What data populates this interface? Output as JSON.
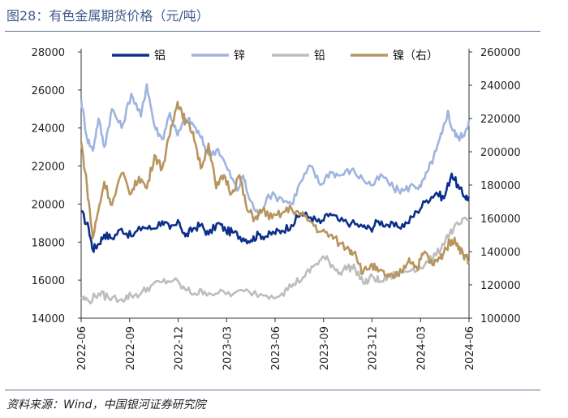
{
  "page": {
    "title": "图28：有色金属期货价格（元/吨）",
    "source": "资料来源：Wind，中国银河证券研究院"
  },
  "chart_data": {
    "type": "line",
    "title": "有色金属期货价格（元/吨）",
    "x_ticks": [
      "2022-06",
      "2022-09",
      "2022-12",
      "2023-03",
      "2023-06",
      "2023-09",
      "2023-12",
      "2024-03",
      "2024-06"
    ],
    "y_left": {
      "min": 14000,
      "max": 28000,
      "ticks": [
        "14000",
        "16000",
        "18000",
        "20000",
        "22000",
        "24000",
        "26000",
        "28000"
      ]
    },
    "y_right": {
      "min": 100000,
      "max": 260000,
      "ticks": [
        "100000",
        "120000",
        "140000",
        "160000",
        "180000",
        "200000",
        "220000",
        "240000",
        "260000"
      ]
    },
    "legend_position": "top",
    "series": [
      {
        "name": "铝",
        "axis": "left",
        "color": "#0b2f8a",
        "x": [
          2022.46,
          2022.5,
          2022.52,
          2022.55,
          2022.58,
          2022.62,
          2022.67,
          2022.72,
          2022.78,
          2022.83,
          2022.88,
          2022.92,
          2022.97,
          2023.0,
          2023.04,
          2023.08,
          2023.12,
          2023.17,
          2023.21,
          2023.25,
          2023.3,
          2023.34,
          2023.38,
          2023.42,
          2023.46,
          2023.5,
          2023.55,
          2023.6,
          2023.65,
          2023.7,
          2023.75,
          2023.8,
          2023.86,
          2023.92,
          2023.96,
          2024.0,
          2024.05,
          2024.1,
          2024.15,
          2024.2,
          2024.25,
          2024.3,
          2024.34,
          2024.38,
          2024.42,
          2024.45,
          2024.47
        ],
        "values": [
          19600,
          18700,
          17600,
          17900,
          18400,
          18200,
          18700,
          18300,
          18800,
          18700,
          19100,
          18700,
          19000,
          18300,
          18700,
          18900,
          18400,
          19000,
          18600,
          18500,
          18200,
          18100,
          18400,
          18300,
          18500,
          18600,
          18900,
          19500,
          19300,
          19000,
          19500,
          19100,
          19000,
          18800,
          18700,
          19100,
          18900,
          18800,
          19000,
          19600,
          20200,
          20600,
          20300,
          21600,
          20800,
          20400,
          20300
        ]
      },
      {
        "name": "锌",
        "axis": "left",
        "color": "#9fb4df",
        "x": [
          2022.46,
          2022.49,
          2022.52,
          2022.55,
          2022.58,
          2022.62,
          2022.67,
          2022.72,
          2022.77,
          2022.8,
          2022.84,
          2022.88,
          2022.92,
          2022.96,
          2023.0,
          2023.04,
          2023.08,
          2023.12,
          2023.17,
          2023.22,
          2023.27,
          2023.3,
          2023.33,
          2023.38,
          2023.43,
          2023.5,
          2023.55,
          2023.6,
          2023.65,
          2023.7,
          2023.75,
          2023.8,
          2023.86,
          2023.92,
          2023.97,
          2024.02,
          2024.08,
          2024.13,
          2024.18,
          2024.22,
          2024.26,
          2024.3,
          2024.33,
          2024.36,
          2024.38,
          2024.41,
          2024.44,
          2024.47
        ],
        "values": [
          25500,
          23500,
          22800,
          24500,
          23000,
          25000,
          24000,
          25800,
          24600,
          26300,
          24100,
          23400,
          24800,
          23600,
          24500,
          24200,
          23500,
          22600,
          22900,
          21800,
          20700,
          21500,
          20300,
          19400,
          20500,
          20300,
          20000,
          21200,
          22000,
          21000,
          21700,
          21500,
          21800,
          21300,
          21000,
          21500,
          20800,
          20700,
          21000,
          20900,
          21800,
          22800,
          23700,
          24900,
          24000,
          23500,
          23600,
          24400
        ]
      },
      {
        "name": "铅",
        "axis": "left",
        "color": "#bdbdbd",
        "x": [
          2022.46,
          2022.5,
          2022.55,
          2022.6,
          2022.67,
          2022.72,
          2022.77,
          2022.82,
          2022.88,
          2022.94,
          2023.0,
          2023.05,
          2023.1,
          2023.17,
          2023.25,
          2023.33,
          2023.42,
          2023.5,
          2023.56,
          2023.62,
          2023.67,
          2023.72,
          2023.76,
          2023.8,
          2023.84,
          2023.88,
          2023.93,
          2023.97,
          2024.01,
          2024.06,
          2024.12,
          2024.18,
          2024.24,
          2024.3,
          2024.35,
          2024.39,
          2024.43,
          2024.47
        ],
        "values": [
          15100,
          14900,
          15300,
          15100,
          15000,
          15200,
          15300,
          15700,
          15900,
          16000,
          15500,
          15300,
          15400,
          15300,
          15300,
          15400,
          15200,
          15300,
          15800,
          16200,
          16800,
          17200,
          16800,
          16400,
          16700,
          16600,
          15800,
          16200,
          15900,
          16200,
          16400,
          16600,
          16800,
          17300,
          18200,
          18700,
          19000,
          19200
        ]
      },
      {
        "name": "镍（右）",
        "axis": "right",
        "color": "#b8955f",
        "x": [
          2022.46,
          2022.49,
          2022.52,
          2022.55,
          2022.58,
          2022.62,
          2022.67,
          2022.72,
          2022.76,
          2022.8,
          2022.84,
          2022.88,
          2022.92,
          2022.96,
          2022.98,
          2023.0,
          2023.04,
          2023.08,
          2023.12,
          2023.16,
          2023.2,
          2023.24,
          2023.28,
          2023.32,
          2023.36,
          2023.4,
          2023.45,
          2023.5,
          2023.55,
          2023.6,
          2023.65,
          2023.7,
          2023.75,
          2023.8,
          2023.85,
          2023.88,
          2023.92,
          2023.96,
          2024.0,
          2024.04,
          2024.08,
          2024.12,
          2024.16,
          2024.2,
          2024.24,
          2024.28,
          2024.32,
          2024.35,
          2024.38,
          2024.41,
          2024.44,
          2024.47
        ],
        "values": [
          206000,
          180000,
          148000,
          165000,
          182000,
          168000,
          187000,
          175000,
          185000,
          178000,
          198000,
          190000,
          210000,
          230000,
          225000,
          218000,
          212000,
          190000,
          205000,
          178000,
          186000,
          175000,
          186000,
          165000,
          160000,
          165000,
          160000,
          163000,
          166000,
          162000,
          158000,
          152000,
          150000,
          145000,
          141000,
          140000,
          127000,
          132000,
          128000,
          126000,
          124000,
          128000,
          136000,
          130000,
          140000,
          132000,
          136000,
          142000,
          147000,
          145000,
          138000,
          135000
        ]
      }
    ]
  }
}
